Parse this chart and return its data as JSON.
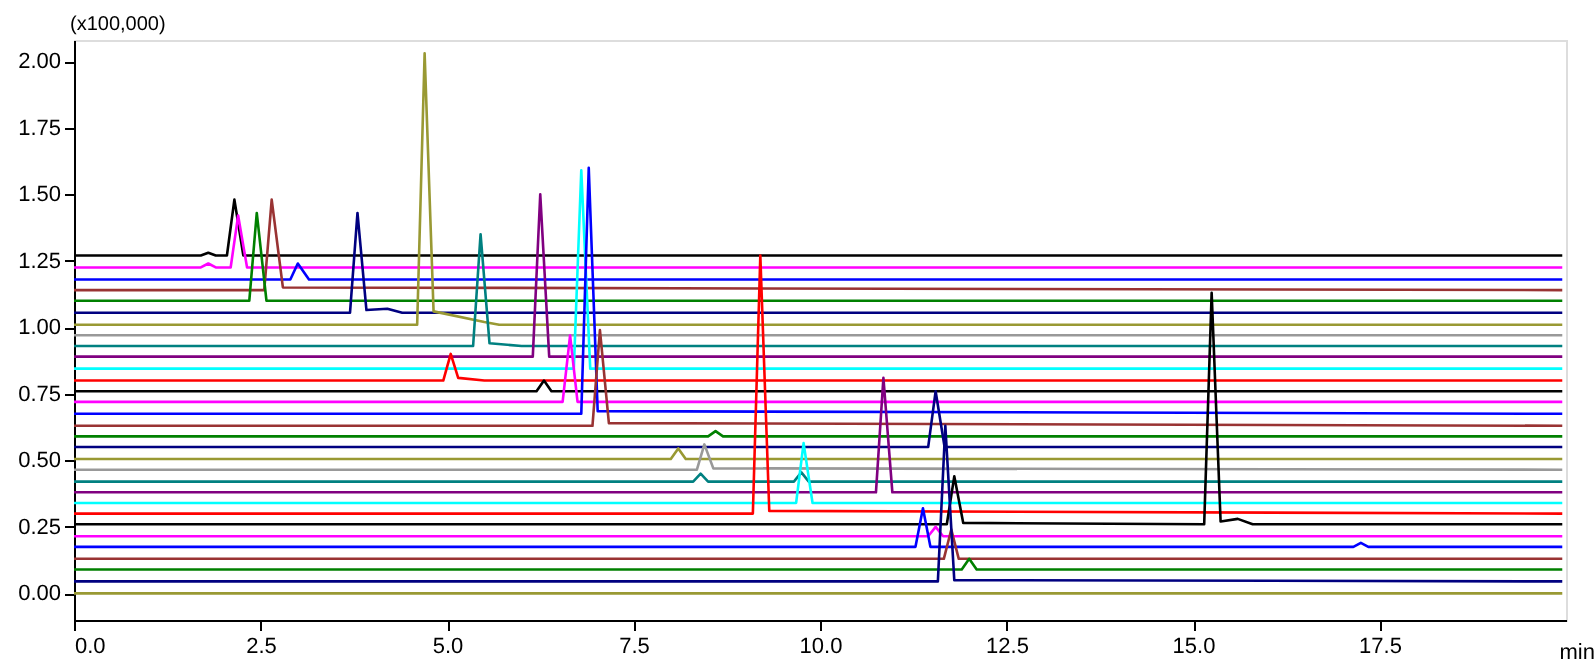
{
  "chart_data": {
    "type": "line",
    "xlabel": "min",
    "annotations": [
      "(x100,000)"
    ],
    "xlim": [
      0,
      20
    ],
    "ylim": [
      -0.1,
      2.08
    ],
    "xticks": [
      {
        "value": 0,
        "label": "0.0"
      },
      {
        "value": 2.5,
        "label": "2.5"
      },
      {
        "value": 5,
        "label": "5.0"
      },
      {
        "value": 7.5,
        "label": "7.5"
      },
      {
        "value": 10,
        "label": "10.0"
      },
      {
        "value": 12.5,
        "label": "12.5"
      },
      {
        "value": 15,
        "label": "15.0"
      },
      {
        "value": 17.5,
        "label": "17.5"
      }
    ],
    "yticks": [
      {
        "value": 0,
        "label": "0.00"
      },
      {
        "value": 0.25,
        "label": "0.25"
      },
      {
        "value": 0.5,
        "label": "0.50"
      },
      {
        "value": 0.75,
        "label": "0.75"
      },
      {
        "value": 1,
        "label": "1.00"
      },
      {
        "value": 1.25,
        "label": "1.25"
      },
      {
        "value": 1.5,
        "label": "1.50"
      },
      {
        "value": 1.75,
        "label": "1.75"
      },
      {
        "value": 2,
        "label": "2.00"
      }
    ],
    "grid": false,
    "legend": false,
    "line_style": "solid",
    "marker": "none",
    "series": [
      {
        "color": "#000000",
        "x": [
          0,
          1.7,
          1.8,
          1.9,
          2.05,
          2.15,
          2.27,
          19.95
        ],
        "values": [
          1.27,
          1.27,
          1.28,
          1.27,
          1.27,
          1.48,
          1.27,
          1.27
        ]
      },
      {
        "color": "#ff00ff",
        "x": [
          0,
          1.7,
          1.8,
          1.9,
          2.1,
          2.2,
          2.32,
          19.95
        ],
        "values": [
          1.225,
          1.225,
          1.24,
          1.225,
          1.225,
          1.42,
          1.225,
          1.225
        ]
      },
      {
        "color": "#0000ff",
        "x": [
          0,
          2.9,
          3.0,
          3.15,
          19.95
        ],
        "values": [
          1.18,
          1.18,
          1.24,
          1.18,
          1.18
        ]
      },
      {
        "color": "#993333",
        "x": [
          0,
          2.55,
          2.65,
          2.8,
          19.95
        ],
        "values": [
          1.14,
          1.14,
          1.48,
          1.15,
          1.14
        ]
      },
      {
        "color": "#008000",
        "x": [
          0,
          2.35,
          2.45,
          2.58,
          19.95
        ],
        "values": [
          1.1,
          1.1,
          1.43,
          1.1,
          1.1
        ]
      },
      {
        "color": "#000080",
        "x": [
          0,
          3.7,
          3.8,
          3.92,
          4.2,
          4.4,
          19.95
        ],
        "values": [
          1.055,
          1.055,
          1.43,
          1.065,
          1.07,
          1.055,
          1.055
        ]
      },
      {
        "color": "#999933",
        "x": [
          0,
          4.6,
          4.7,
          4.82,
          5.5,
          5.7,
          19.95
        ],
        "values": [
          1.01,
          1.01,
          2.03,
          1.06,
          1.02,
          1.01,
          1.01
        ]
      },
      {
        "color": "#999999",
        "x": [
          0,
          19.95
        ],
        "values": [
          0.97,
          0.97
        ]
      },
      {
        "color": "#008080",
        "x": [
          0,
          5.35,
          5.45,
          5.57,
          6.0,
          19.95
        ],
        "values": [
          0.93,
          0.93,
          1.35,
          0.94,
          0.93,
          0.93
        ]
      },
      {
        "color": "#800080",
        "x": [
          0,
          6.15,
          6.25,
          6.37,
          19.95
        ],
        "values": [
          0.89,
          0.89,
          1.5,
          0.89,
          0.89
        ]
      },
      {
        "color": "#00ffff",
        "x": [
          0,
          6.7,
          6.8,
          6.92,
          19.95
        ],
        "values": [
          0.845,
          0.845,
          1.59,
          0.845,
          0.845
        ]
      },
      {
        "color": "#ff0000",
        "x": [
          0,
          4.95,
          5.05,
          5.15,
          5.5,
          19.95
        ],
        "values": [
          0.8,
          0.8,
          0.9,
          0.81,
          0.8,
          0.8
        ]
      },
      {
        "color": "#000000",
        "x": [
          0,
          6.2,
          6.3,
          6.4,
          19.95
        ],
        "values": [
          0.76,
          0.76,
          0.8,
          0.76,
          0.76
        ]
      },
      {
        "color": "#ff00ff",
        "x": [
          0,
          6.55,
          6.65,
          6.75,
          19.95
        ],
        "values": [
          0.72,
          0.72,
          0.97,
          0.72,
          0.72
        ]
      },
      {
        "color": "#0000ff",
        "x": [
          0,
          6.8,
          6.9,
          7.02,
          19.95
        ],
        "values": [
          0.675,
          0.675,
          1.6,
          0.685,
          0.675
        ]
      },
      {
        "color": "#993333",
        "x": [
          0,
          6.95,
          7.05,
          7.17,
          19.95
        ],
        "values": [
          0.63,
          0.63,
          0.99,
          0.64,
          0.63
        ]
      },
      {
        "color": "#008000",
        "x": [
          0,
          8.5,
          8.6,
          8.7,
          19.95
        ],
        "values": [
          0.59,
          0.59,
          0.61,
          0.59,
          0.59
        ]
      },
      {
        "color": "#000080",
        "x": [
          0,
          11.45,
          11.55,
          11.67,
          19.95
        ],
        "values": [
          0.55,
          0.55,
          0.76,
          0.55,
          0.55
        ]
      },
      {
        "color": "#999933",
        "x": [
          0,
          8.0,
          8.1,
          8.2,
          19.95
        ],
        "values": [
          0.505,
          0.505,
          0.545,
          0.505,
          0.505
        ]
      },
      {
        "color": "#999999",
        "x": [
          0,
          8.35,
          8.45,
          8.57,
          19.95
        ],
        "values": [
          0.465,
          0.465,
          0.56,
          0.47,
          0.465
        ]
      },
      {
        "color": "#008080",
        "x": [
          0,
          8.3,
          8.4,
          8.5,
          9.65,
          9.75,
          9.85,
          19.95
        ],
        "values": [
          0.42,
          0.42,
          0.45,
          0.42,
          0.42,
          0.455,
          0.42,
          0.42
        ]
      },
      {
        "color": "#800080",
        "x": [
          0,
          10.75,
          10.85,
          10.97,
          19.95
        ],
        "values": [
          0.38,
          0.38,
          0.81,
          0.38,
          0.38
        ]
      },
      {
        "color": "#00ffff",
        "x": [
          0,
          9.68,
          9.78,
          9.9,
          19.95
        ],
        "values": [
          0.34,
          0.34,
          0.565,
          0.34,
          0.34
        ]
      },
      {
        "color": "#ff0000",
        "x": [
          0,
          9.1,
          9.2,
          9.32,
          19.95
        ],
        "values": [
          0.3,
          0.3,
          1.27,
          0.31,
          0.3
        ]
      },
      {
        "color": "#000000",
        "x": [
          0,
          11.7,
          11.8,
          11.92,
          15.15,
          15.25,
          15.37,
          15.6,
          15.8,
          19.95
        ],
        "values": [
          0.26,
          0.26,
          0.44,
          0.265,
          0.26,
          1.13,
          0.27,
          0.28,
          0.26,
          0.26
        ]
      },
      {
        "color": "#ff00ff",
        "x": [
          0,
          11.45,
          11.55,
          11.65,
          19.95
        ],
        "values": [
          0.215,
          0.215,
          0.25,
          0.215,
          0.215
        ]
      },
      {
        "color": "#0000ff",
        "x": [
          0,
          11.28,
          11.38,
          11.48,
          17.15,
          17.25,
          17.35,
          19.95
        ],
        "values": [
          0.175,
          0.175,
          0.32,
          0.175,
          0.175,
          0.19,
          0.175,
          0.175
        ]
      },
      {
        "color": "#993333",
        "x": [
          0,
          11.66,
          11.76,
          11.86,
          19.95
        ],
        "values": [
          0.13,
          0.13,
          0.24,
          0.13,
          0.13
        ]
      },
      {
        "color": "#008000",
        "x": [
          0,
          11.9,
          12.0,
          12.1,
          19.95
        ],
        "values": [
          0.09,
          0.09,
          0.13,
          0.09,
          0.09
        ]
      },
      {
        "color": "#000080",
        "x": [
          0,
          11.58,
          11.68,
          11.8,
          19.95
        ],
        "values": [
          0.045,
          0.045,
          0.63,
          0.05,
          0.045
        ]
      },
      {
        "color": "#999933",
        "x": [
          0,
          19.95
        ],
        "values": [
          0,
          0
        ]
      }
    ]
  }
}
